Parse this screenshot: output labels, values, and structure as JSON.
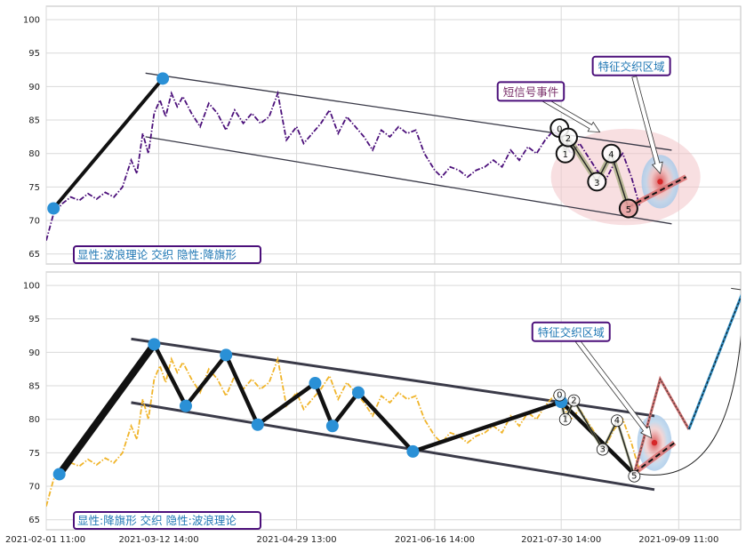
{
  "chart_data": [
    {
      "type": "line",
      "panel": "top",
      "ylim": [
        63.5,
        102
      ],
      "yticks": [
        65,
        70,
        75,
        80,
        85,
        90,
        95,
        100
      ],
      "xlim": [
        "2021-02-01 11:00",
        "2021-10-01 00:00"
      ],
      "grid": true,
      "series": [
        {
          "style": "dash-dot",
          "color": "#4b0f7a",
          "points": [
            [
              "2021-02-01 11:00",
              67.0
            ],
            [
              "2021-02-04",
              71.0
            ],
            [
              "2021-02-07",
              72.5
            ],
            [
              "2021-02-10",
              73.5
            ],
            [
              "2021-02-13",
              73.0
            ],
            [
              "2021-02-16",
              74.0
            ],
            [
              "2021-02-19",
              73.2
            ],
            [
              "2021-02-22",
              74.2
            ],
            [
              "2021-02-25",
              73.5
            ],
            [
              "2021-02-28",
              75.0
            ],
            [
              "2021-03-03",
              79.0
            ],
            [
              "2021-03-05",
              77.0
            ],
            [
              "2021-03-07",
              83.0
            ],
            [
              "2021-03-09",
              80.0
            ],
            [
              "2021-03-11",
              86.0
            ],
            [
              "2021-03-13",
              88.0
            ],
            [
              "2021-03-15",
              85.5
            ],
            [
              "2021-03-17",
              89.0
            ],
            [
              "2021-03-19",
              87.0
            ],
            [
              "2021-03-21",
              88.5
            ],
            [
              "2021-03-24",
              86.0
            ],
            [
              "2021-03-27",
              84.0
            ],
            [
              "2021-03-30",
              87.5
            ],
            [
              "2021-04-02",
              86.0
            ],
            [
              "2021-04-05",
              83.5
            ],
            [
              "2021-04-08",
              86.5
            ],
            [
              "2021-04-11",
              84.5
            ],
            [
              "2021-04-14",
              86.0
            ],
            [
              "2021-04-17",
              84.5
            ],
            [
              "2021-04-20",
              85.5
            ],
            [
              "2021-04-23",
              89.0
            ],
            [
              "2021-04-26",
              82.0
            ],
            [
              "2021-04-29 13:00",
              84.0
            ],
            [
              "2021-05-02",
              81.5
            ],
            [
              "2021-05-05",
              83.0
            ],
            [
              "2021-05-08",
              84.5
            ],
            [
              "2021-05-11",
              86.5
            ],
            [
              "2021-05-14",
              83.0
            ],
            [
              "2021-05-17",
              85.5
            ],
            [
              "2021-05-20",
              84.0
            ],
            [
              "2021-05-23",
              82.5
            ],
            [
              "2021-05-26",
              80.5
            ],
            [
              "2021-05-29",
              83.5
            ],
            [
              "2021-06-01",
              82.5
            ],
            [
              "2021-06-04",
              84.0
            ],
            [
              "2021-06-07",
              83.0
            ],
            [
              "2021-06-10",
              83.5
            ],
            [
              "2021-06-13",
              80.0
            ],
            [
              "2021-06-16 14:00",
              77.5
            ],
            [
              "2021-06-19",
              76.5
            ],
            [
              "2021-06-22",
              78.0
            ],
            [
              "2021-06-25",
              77.5
            ],
            [
              "2021-06-28",
              76.5
            ],
            [
              "2021-07-01",
              77.5
            ],
            [
              "2021-07-04",
              78.0
            ],
            [
              "2021-07-07",
              79.0
            ],
            [
              "2021-07-10",
              78.0
            ],
            [
              "2021-07-13",
              80.5
            ],
            [
              "2021-07-16",
              79.0
            ],
            [
              "2021-07-19",
              81.0
            ],
            [
              "2021-07-22",
              80.0
            ],
            [
              "2021-07-25",
              82.0
            ],
            [
              "2021-07-28",
              83.5
            ],
            [
              "2021-07-31",
              82.0
            ],
            [
              "2021-08-03",
              80.0
            ],
            [
              "2021-08-06",
              81.5
            ],
            [
              "2021-08-09",
              79.5
            ],
            [
              "2021-08-12",
              77.5
            ],
            [
              "2021-08-15",
              76.0
            ],
            [
              "2021-08-18",
              78.5
            ],
            [
              "2021-08-21",
              80.0
            ],
            [
              "2021-08-24",
              76.5
            ],
            [
              "2021-08-27",
              72.0
            ]
          ]
        }
      ],
      "wave_line": {
        "color": "#111111",
        "points": [
          [
            "2021-02-04",
            71.8
          ],
          [
            "2021-03-14",
            91.2
          ]
        ],
        "markers": [
          [
            "2021-02-04",
            71.8
          ],
          [
            "2021-03-14",
            91.2
          ]
        ]
      },
      "channel_lines": [
        [
          [
            "2021-03-08",
            92.0
          ],
          [
            "2021-09-07",
            80.5
          ]
        ],
        [
          [
            "2021-03-08",
            82.5
          ],
          [
            "2021-09-07",
            69.5
          ]
        ]
      ],
      "wave_count": {
        "labels": [
          "0",
          "1",
          "2",
          "3",
          "4",
          "5"
        ],
        "points": [
          [
            "2021-07-30",
            83.8
          ],
          [
            "2021-08-01",
            80.0
          ],
          [
            "2021-08-02",
            82.4
          ],
          [
            "2021-08-12",
            75.8
          ],
          [
            "2021-08-17",
            80.0
          ],
          [
            "2021-08-23",
            71.8
          ]
        ]
      },
      "target_line": [
        [
          "2021-08-23",
          72.0
        ],
        [
          "2021-09-12",
          76.5
        ]
      ],
      "zones": {
        "large_ellipse": {
          "center": [
            "2021-08-22",
            76.5
          ],
          "rx_days": 26,
          "ry": 7.2,
          "color": "#f2c4c8"
        },
        "small_ellipse": {
          "center": [
            "2021-09-03",
            75.8
          ],
          "rx_days": 6.5,
          "ry": 4.0
        }
      },
      "callouts": [
        {
          "text": "短信号事件",
          "box_at": [
            "2021-07-20",
            89.2
          ],
          "arrow_to": [
            "2021-08-13",
            83.2
          ],
          "text_color": "#7a2f6a"
        },
        {
          "text": "特征交织区域",
          "box_at": [
            "2021-08-24",
            93.0
          ],
          "arrow_to": [
            "2021-09-03",
            77.0
          ],
          "text_color": "#1f77b4"
        }
      ],
      "badge": "显性:波浪理论 交织 隐性:降旗形"
    },
    {
      "type": "line",
      "panel": "bottom",
      "ylim": [
        63.5,
        102
      ],
      "yticks": [
        65,
        70,
        75,
        80,
        85,
        90,
        95,
        100
      ],
      "xlim": [
        "2021-02-01 11:00",
        "2021-10-01 00:00"
      ],
      "grid": true,
      "xticks": [
        "2021-02-01 11:00",
        "2021-03-12 14:00",
        "2021-04-29 13:00",
        "2021-06-16 14:00",
        "2021-07-30 14:00",
        "2021-09-09 11:00"
      ],
      "series": [
        {
          "style": "dash-dot",
          "color": "#f0b429",
          "points": [
            [
              "2021-02-01 11:00",
              67.0
            ],
            [
              "2021-02-04",
              71.0
            ],
            [
              "2021-02-07",
              72.5
            ],
            [
              "2021-02-10",
              73.5
            ],
            [
              "2021-02-13",
              73.0
            ],
            [
              "2021-02-16",
              74.0
            ],
            [
              "2021-02-19",
              73.2
            ],
            [
              "2021-02-22",
              74.2
            ],
            [
              "2021-02-25",
              73.5
            ],
            [
              "2021-02-28",
              75.0
            ],
            [
              "2021-03-03",
              79.0
            ],
            [
              "2021-03-05",
              77.0
            ],
            [
              "2021-03-07",
              83.0
            ],
            [
              "2021-03-09",
              80.0
            ],
            [
              "2021-03-11",
              86.0
            ],
            [
              "2021-03-13",
              88.0
            ],
            [
              "2021-03-15",
              85.5
            ],
            [
              "2021-03-17",
              89.0
            ],
            [
              "2021-03-19",
              87.0
            ],
            [
              "2021-03-21",
              88.5
            ],
            [
              "2021-03-24",
              86.0
            ],
            [
              "2021-03-27",
              84.0
            ],
            [
              "2021-03-30",
              87.5
            ],
            [
              "2021-04-02",
              86.0
            ],
            [
              "2021-04-05",
              83.5
            ],
            [
              "2021-04-08",
              86.5
            ],
            [
              "2021-04-11",
              84.5
            ],
            [
              "2021-04-14",
              86.0
            ],
            [
              "2021-04-17",
              84.5
            ],
            [
              "2021-04-20",
              85.5
            ],
            [
              "2021-04-23",
              89.0
            ],
            [
              "2021-04-26",
              82.0
            ],
            [
              "2021-04-29 13:00",
              84.0
            ],
            [
              "2021-05-02",
              81.5
            ],
            [
              "2021-05-05",
              83.0
            ],
            [
              "2021-05-08",
              84.5
            ],
            [
              "2021-05-11",
              86.5
            ],
            [
              "2021-05-14",
              83.0
            ],
            [
              "2021-05-17",
              85.5
            ],
            [
              "2021-05-20",
              84.0
            ],
            [
              "2021-05-23",
              82.5
            ],
            [
              "2021-05-26",
              80.5
            ],
            [
              "2021-05-29",
              83.5
            ],
            [
              "2021-06-01",
              82.5
            ],
            [
              "2021-06-04",
              84.0
            ],
            [
              "2021-06-07",
              83.0
            ],
            [
              "2021-06-10",
              83.5
            ],
            [
              "2021-06-13",
              80.0
            ],
            [
              "2021-06-16 14:00",
              77.5
            ],
            [
              "2021-06-19",
              76.5
            ],
            [
              "2021-06-22",
              78.0
            ],
            [
              "2021-06-25",
              77.5
            ],
            [
              "2021-06-28",
              76.5
            ],
            [
              "2021-07-01",
              77.5
            ],
            [
              "2021-07-04",
              78.0
            ],
            [
              "2021-07-07",
              79.0
            ],
            [
              "2021-07-10",
              78.0
            ],
            [
              "2021-07-13",
              80.5
            ],
            [
              "2021-07-16",
              79.0
            ],
            [
              "2021-07-19",
              81.0
            ],
            [
              "2021-07-22",
              80.0
            ],
            [
              "2021-07-25",
              82.0
            ],
            [
              "2021-07-28",
              83.5
            ],
            [
              "2021-07-31",
              82.0
            ],
            [
              "2021-08-03",
              80.0
            ],
            [
              "2021-08-06",
              81.5
            ],
            [
              "2021-08-09",
              79.5
            ],
            [
              "2021-08-12",
              77.5
            ],
            [
              "2021-08-15",
              76.0
            ],
            [
              "2021-08-18",
              78.5
            ],
            [
              "2021-08-21",
              80.0
            ],
            [
              "2021-08-24",
              76.5
            ],
            [
              "2021-08-27",
              72.0
            ]
          ]
        }
      ],
      "wave_line": {
        "color": "#111111",
        "points": [
          [
            "2021-02-06",
            71.8
          ],
          [
            "2021-03-11",
            91.2
          ],
          [
            "2021-03-22",
            82.0
          ],
          [
            "2021-04-05",
            89.6
          ],
          [
            "2021-04-16",
            79.2
          ],
          [
            "2021-05-06",
            85.4
          ],
          [
            "2021-05-12",
            79.0
          ],
          [
            "2021-05-21",
            84.0
          ],
          [
            "2021-06-09",
            75.2
          ],
          [
            "2021-07-30 14:00",
            82.6
          ],
          [
            "2021-08-25",
            71.8
          ]
        ],
        "markers": [
          [
            "2021-02-06",
            71.8
          ],
          [
            "2021-03-11",
            91.2
          ],
          [
            "2021-03-22",
            82.0
          ],
          [
            "2021-04-05",
            89.6
          ],
          [
            "2021-04-16",
            79.2
          ],
          [
            "2021-05-06",
            85.4
          ],
          [
            "2021-05-12",
            79.0
          ],
          [
            "2021-05-21",
            84.0
          ],
          [
            "2021-06-09",
            75.2
          ],
          [
            "2021-07-30 14:00",
            82.6
          ]
        ]
      },
      "channel_lines": [
        [
          [
            "2021-03-03",
            92.0
          ],
          [
            "2021-09-01",
            80.5
          ]
        ],
        [
          [
            "2021-03-03",
            82.5
          ],
          [
            "2021-09-01",
            69.5
          ]
        ]
      ],
      "wave_count": {
        "labels": [
          "0",
          "1",
          "2",
          "3",
          "4",
          "5"
        ],
        "points": [
          [
            "2021-07-30",
            83.6
          ],
          [
            "2021-08-01",
            80.0
          ],
          [
            "2021-08-04",
            82.8
          ],
          [
            "2021-08-14",
            75.5
          ],
          [
            "2021-08-19",
            79.8
          ],
          [
            "2021-08-25",
            71.5
          ]
        ]
      },
      "target_line": [
        [
          "2021-08-25",
          72.0
        ],
        [
          "2021-09-08",
          76.5
        ]
      ],
      "projection": {
        "down_up": [
          [
            "2021-08-25",
            72.0
          ],
          [
            "2021-09-03",
            86.0
          ],
          [
            "2021-09-13",
            78.5
          ]
        ],
        "up": [
          [
            "2021-09-13",
            78.5
          ],
          [
            "2021-10-02",
            99.3
          ]
        ],
        "arc_end": [
          "2021-10-02",
          99.3
        ]
      },
      "zones": {
        "small_ellipse": {
          "center": [
            "2021-09-01",
            76.5
          ],
          "rx_days": 6.0,
          "ry": 4.2
        }
      },
      "callouts": [
        {
          "text": "特征交织区域",
          "box_at": [
            "2021-08-03",
            93.0
          ],
          "arrow_to": [
            "2021-08-31",
            77.2
          ],
          "text_color": "#1f77b4"
        }
      ],
      "badge": "显性:降旗形 交织 隐性:波浪理论"
    }
  ]
}
